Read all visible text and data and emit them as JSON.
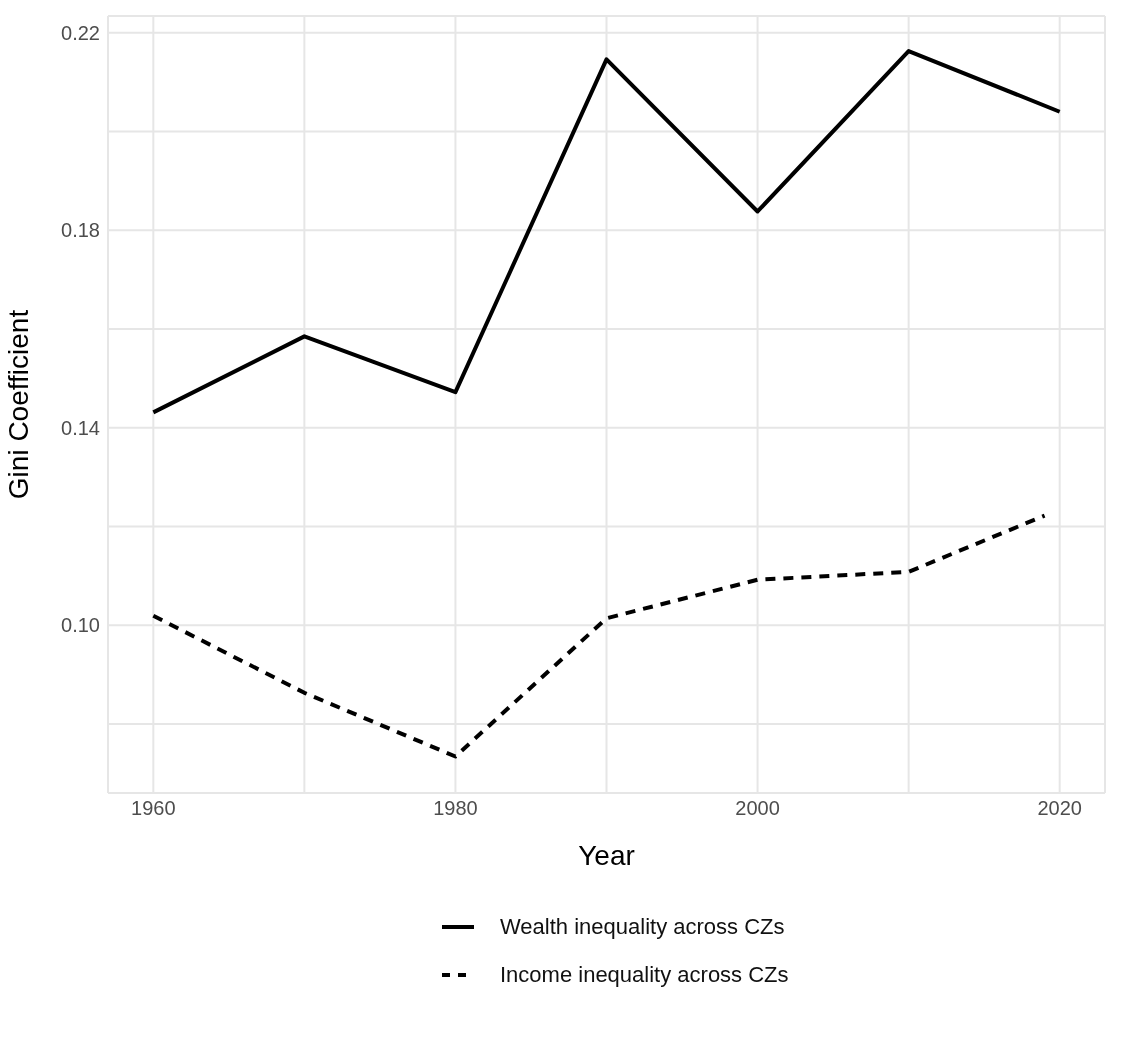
{
  "chart_data": {
    "type": "line",
    "xlabel": "Year",
    "ylabel": "Gini Coefficient",
    "series": [
      {
        "name": "Wealth inequality across CZs",
        "color": "#000000",
        "line_style": "solid",
        "x": [
          1960,
          1970,
          1980,
          1990,
          2000,
          2010,
          2020
        ],
        "values": [
          0.1431,
          0.1585,
          0.1472,
          0.2146,
          0.1838,
          0.2163,
          0.204
        ]
      },
      {
        "name": "Income inequality across CZs",
        "color": "#000000",
        "line_style": "dashed",
        "x": [
          1960,
          1970,
          1980,
          1990,
          2000,
          2010,
          2019
        ],
        "values": [
          0.1019,
          0.0863,
          0.0734,
          0.1014,
          0.1092,
          0.1108,
          0.1222
        ]
      }
    ],
    "xlim": [
      1957,
      2023
    ],
    "xticks": [
      1960,
      {
        "value": 1970,
        "label": null
      },
      1980,
      {
        "value": 1990,
        "label": null
      },
      2000,
      {
        "value": 2010,
        "label": null
      },
      2020
    ],
    "ylim": [
      0.066,
      0.2234
    ],
    "yticks": [
      {
        "value": 0.08,
        "label": null
      },
      {
        "value": 0.1,
        "label": "0.10"
      },
      {
        "value": 0.12,
        "label": null
      },
      {
        "value": 0.14,
        "label": "0.14"
      },
      {
        "value": 0.16,
        "label": null
      },
      {
        "value": 0.18,
        "label": "0.18"
      },
      {
        "value": 0.2,
        "label": null
      },
      {
        "value": 0.22,
        "label": "0.22"
      }
    ],
    "grid": true,
    "legend": "bottom",
    "marker": "none"
  }
}
